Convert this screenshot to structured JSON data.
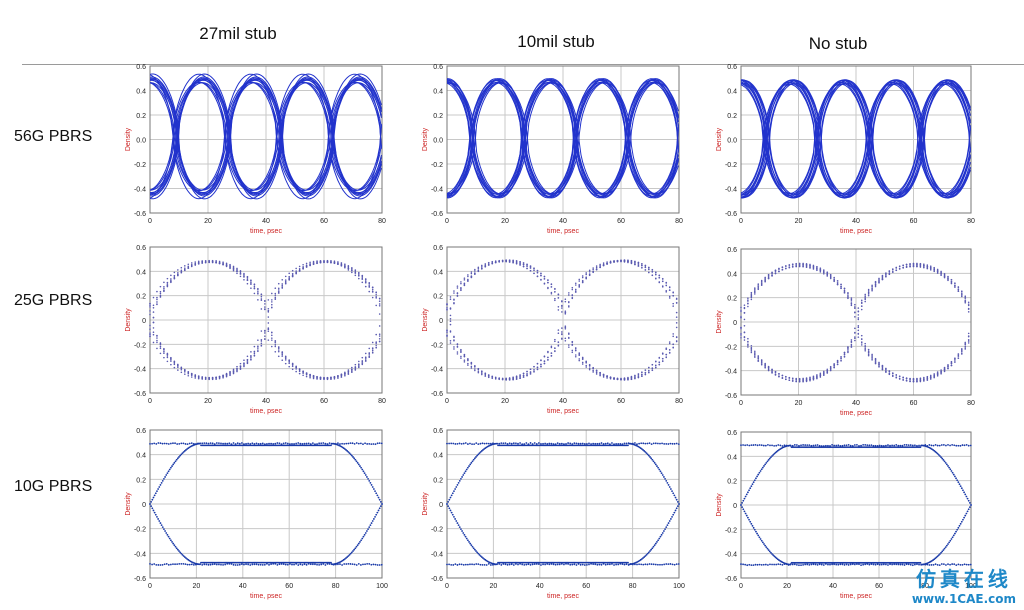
{
  "headers": {
    "col1": "27mil stub",
    "col2": "10mil stub",
    "col3": "No stub"
  },
  "rows": {
    "r1": "56G PBRS",
    "r2": "25G PBRS",
    "r3": "10G PBRS"
  },
  "watermark": {
    "cn": "仿真在线",
    "url": "www.1CAE.com"
  },
  "chart_data": [
    {
      "type": "scatter",
      "title": "",
      "row": "56G PBRS",
      "column": "27mil stub",
      "xlabel": "time, psec",
      "ylabel": "Density",
      "xlim": [
        0,
        80
      ],
      "ylim": [
        -0.6,
        0.6
      ],
      "xticks": [
        0,
        20,
        40,
        60,
        80
      ],
      "yticks": [
        -0.6,
        -0.4,
        -0.2,
        0.0,
        0.2,
        0.4,
        0.6
      ],
      "ytick_labels": [
        "-0.6",
        "-0.4",
        "-0.2",
        "0.0",
        "0.2",
        "0.4",
        "0.6"
      ],
      "series": [
        {
          "crossings_x": [
            0,
            17.9,
            35.8,
            53.6,
            71.4
          ],
          "high_level": 0.5,
          "low_level": -0.45,
          "amplitude_spread": 0.09
        }
      ],
      "color": "#2233cc",
      "grid": true
    },
    {
      "type": "scatter",
      "title": "",
      "row": "56G PBRS",
      "column": "10mil stub",
      "xlabel": "time, psec",
      "ylabel": "Density",
      "xlim": [
        0,
        80
      ],
      "ylim": [
        -0.6,
        0.6
      ],
      "xticks": [
        0,
        20,
        40,
        60,
        80
      ],
      "yticks": [
        -0.6,
        -0.4,
        -0.2,
        0.0,
        0.2,
        0.4,
        0.6
      ],
      "ytick_labels": [
        "-0.6",
        "-0.4",
        "-0.2",
        "0.0",
        "0.2",
        "0.4",
        "0.6"
      ],
      "series": [
        {
          "crossings_x": [
            0,
            17.9,
            35.8,
            53.6,
            71.4
          ],
          "high_level": 0.48,
          "low_level": -0.46,
          "amplitude_spread": 0.05
        }
      ],
      "color": "#2233cc",
      "grid": true
    },
    {
      "type": "scatter",
      "title": "",
      "row": "56G PBRS",
      "column": "No stub",
      "xlabel": "time, psec",
      "ylabel": "Density",
      "xlim": [
        0,
        80
      ],
      "ylim": [
        -0.6,
        0.6
      ],
      "xticks": [
        0,
        20,
        40,
        60,
        80
      ],
      "yticks": [
        -0.6,
        -0.4,
        -0.2,
        0.0,
        0.2,
        0.4,
        0.6
      ],
      "ytick_labels": [
        "-0.6",
        "-0.4",
        "-0.2",
        "0.0",
        "0.2",
        "0.4",
        "0.6"
      ],
      "series": [
        {
          "crossings_x": [
            0,
            17.9,
            35.8,
            53.6,
            71.4
          ],
          "high_level": 0.47,
          "low_level": -0.46,
          "amplitude_spread": 0.04
        }
      ],
      "color": "#2233cc",
      "grid": true
    },
    {
      "type": "scatter",
      "title": "",
      "row": "25G PBRS",
      "column": "27mil stub",
      "xlabel": "time, psec",
      "ylabel": "Density",
      "xlim": [
        0,
        80
      ],
      "ylim": [
        -0.6,
        0.6
      ],
      "xticks": [
        0,
        20,
        40,
        60,
        80
      ],
      "yticks": [
        -0.6,
        -0.4,
        -0.2,
        0.0,
        0.2,
        0.4,
        0.6
      ],
      "ytick_labels": [
        "-0.6",
        "-0.4",
        "-0.2",
        "0",
        "0.2",
        "0.4",
        "0.6"
      ],
      "series": [
        {
          "crossings_x": [
            20,
            60
          ],
          "high_level": 0.48,
          "low_level": -0.48,
          "amplitude_spread": 0.03
        }
      ],
      "color": "#5a5ab0",
      "grid": true
    },
    {
      "type": "scatter",
      "title": "",
      "row": "25G PBRS",
      "column": "10mil stub",
      "xlabel": "time, psec",
      "ylabel": "Density",
      "xlim": [
        0,
        80
      ],
      "ylim": [
        -0.6,
        0.6
      ],
      "xticks": [
        0,
        20,
        40,
        60,
        80
      ],
      "yticks": [
        -0.6,
        -0.4,
        -0.2,
        0.0,
        0.2,
        0.4,
        0.6
      ],
      "ytick_labels": [
        "-0.6",
        "-0.4",
        "-0.2",
        "0",
        "0.2",
        "0.4",
        "0.6"
      ],
      "series": [
        {
          "crossings_x": [
            20,
            60
          ],
          "high_level": 0.48,
          "low_level": -0.48,
          "amplitude_spread": 0.03
        }
      ],
      "color": "#5a5ab0",
      "grid": true
    },
    {
      "type": "scatter",
      "title": "",
      "row": "25G PBRS",
      "column": "No stub",
      "xlabel": "time, psec",
      "ylabel": "Density",
      "xlim": [
        0,
        80
      ],
      "ylim": [
        -0.6,
        0.6
      ],
      "xticks": [
        0,
        20,
        40,
        60,
        80
      ],
      "yticks": [
        -0.6,
        -0.4,
        -0.2,
        0.0,
        0.2,
        0.4,
        0.6
      ],
      "ytick_labels": [
        "-0.6",
        "-0.4",
        "-0.2",
        "0",
        "0.2",
        "0.4",
        "0.6"
      ],
      "series": [
        {
          "crossings_x": [
            20,
            60
          ],
          "high_level": 0.47,
          "low_level": -0.48,
          "amplitude_spread": 0.03
        }
      ],
      "color": "#5a5ab0",
      "grid": true
    },
    {
      "type": "scatter",
      "title": "",
      "row": "10G PBRS",
      "column": "27mil stub",
      "xlabel": "time, psec",
      "ylabel": "Density",
      "xlim": [
        0,
        100
      ],
      "ylim": [
        -0.6,
        0.6
      ],
      "xticks": [
        0,
        20,
        40,
        60,
        80,
        100
      ],
      "yticks": [
        -0.6,
        -0.4,
        -0.2,
        0.0,
        0.2,
        0.4,
        0.6
      ],
      "ytick_labels": [
        "-0.6",
        "-0.4",
        "-0.2",
        "0",
        "0.2",
        "0.4",
        "0.6"
      ],
      "series": [
        {
          "crossings_x": [
            0,
            100
          ],
          "high_level": 0.49,
          "low_level": -0.49,
          "rise_time": 22,
          "amplitude_spread": 0.01
        }
      ],
      "color": "#1a3aa8",
      "grid": true
    },
    {
      "type": "scatter",
      "title": "",
      "row": "10G PBRS",
      "column": "10mil stub",
      "xlabel": "time, psec",
      "ylabel": "Density",
      "xlim": [
        0,
        100
      ],
      "ylim": [
        -0.6,
        0.6
      ],
      "xticks": [
        0,
        20,
        40,
        60,
        80,
        100
      ],
      "yticks": [
        -0.6,
        -0.4,
        -0.2,
        0.0,
        0.2,
        0.4,
        0.6
      ],
      "ytick_labels": [
        "-0.6",
        "-0.4",
        "-0.2",
        "0",
        "0.2",
        "0.4",
        "0.6"
      ],
      "series": [
        {
          "crossings_x": [
            0,
            100
          ],
          "high_level": 0.49,
          "low_level": -0.49,
          "rise_time": 22,
          "amplitude_spread": 0.01
        }
      ],
      "color": "#1a3aa8",
      "grid": true
    },
    {
      "type": "scatter",
      "title": "",
      "row": "10G PBRS",
      "column": "No stub",
      "xlabel": "time, psec",
      "ylabel": "Density",
      "xlim": [
        0,
        100
      ],
      "ylim": [
        -0.6,
        0.6
      ],
      "xticks": [
        0,
        20,
        40,
        60,
        80,
        100
      ],
      "yticks": [
        -0.6,
        -0.4,
        -0.2,
        0.0,
        0.2,
        0.4,
        0.6
      ],
      "ytick_labels": [
        "-0.6",
        "-0.4",
        "-0.2",
        "0",
        "0.2",
        "0.4",
        "0.6"
      ],
      "series": [
        {
          "crossings_x": [
            0,
            100
          ],
          "high_level": 0.49,
          "low_level": -0.49,
          "rise_time": 22,
          "amplitude_spread": 0.01
        }
      ],
      "color": "#1a3aa8",
      "grid": true
    }
  ]
}
